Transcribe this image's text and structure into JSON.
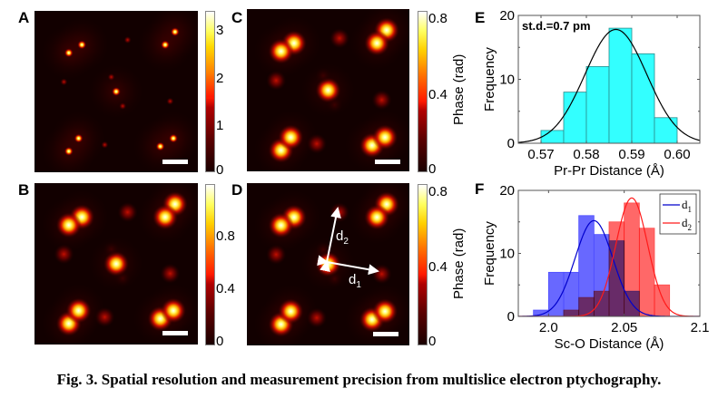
{
  "caption": "Fig. 3. Spatial resolution and measurement precision from multislice electron ptychography.",
  "panels": {
    "A": {
      "letter": "A",
      "colorbar_ticks": [
        "3",
        "2",
        "1",
        "0"
      ],
      "colorbar_range": [
        0,
        3.4
      ]
    },
    "B": {
      "letter": "B",
      "colorbar_ticks": [
        "0.8",
        "0.4",
        "0"
      ],
      "colorbar_range": [
        0,
        1.1
      ]
    },
    "C": {
      "letter": "C",
      "colorbar_ticks": [
        "0.8",
        "0.4",
        "0"
      ],
      "colorbar_title": "Phase (rad)",
      "colorbar_range": [
        0,
        0.84
      ]
    },
    "D": {
      "letter": "D",
      "colorbar_ticks": [
        "0.8",
        "0.4",
        "0"
      ],
      "colorbar_title": "Phase (rad)",
      "colorbar_range": [
        0,
        0.84
      ],
      "arrow_labels": {
        "d1": "d",
        "d1_sub": "1",
        "d2": "d",
        "d2_sub": "2"
      }
    },
    "E": {
      "letter": "E"
    },
    "F": {
      "letter": "F"
    }
  },
  "chart_data": [
    {
      "id": "E",
      "type": "bar",
      "title": "",
      "annotation": "st.d.=0.7 pm",
      "xlabel": "Pr-Pr Distance (Å)",
      "ylabel": "Frequency",
      "xlim": [
        0.565,
        0.605
      ],
      "ylim": [
        0,
        20
      ],
      "xticks": [
        0.57,
        0.58,
        0.59,
        0.6
      ],
      "xtick_labels": [
        "0.57",
        "0.58",
        "0.59",
        "0.60"
      ],
      "yticks": [
        0,
        10,
        20
      ],
      "ytick_labels": [
        "0",
        "10",
        "20"
      ],
      "bin_edges": [
        0.57,
        0.575,
        0.58,
        0.585,
        0.59,
        0.595,
        0.6
      ],
      "values": [
        2,
        8,
        12,
        18,
        14,
        4
      ],
      "bar_color": "#33ffff",
      "fit": {
        "type": "gaussian",
        "mean": 0.5865,
        "std": 0.0068,
        "peak": 17.8,
        "color": "#000000"
      }
    },
    {
      "id": "F",
      "type": "bar",
      "title": "",
      "xlabel": "Sc-O Distance (Å)",
      "ylabel": "Frequency",
      "xlim": [
        1.98,
        2.1
      ],
      "ylim": [
        0,
        20
      ],
      "xticks": [
        2.0,
        2.05,
        2.1
      ],
      "xtick_labels": [
        "2.0",
        "2.05",
        "2.1"
      ],
      "yticks": [
        0,
        10,
        20
      ],
      "ytick_labels": [
        "0",
        "10",
        "20"
      ],
      "legend": {
        "position": "top-right",
        "entries": [
          {
            "label": "d",
            "sub": "1",
            "color": "#0000cc"
          },
          {
            "label": "d",
            "sub": "2",
            "color": "#ff1a1a"
          }
        ]
      },
      "series": [
        {
          "name": "d1",
          "bin_edges": [
            1.99,
            2.0,
            2.01,
            2.02,
            2.03,
            2.04,
            2.05,
            2.06
          ],
          "values": [
            1,
            7,
            7,
            16,
            13,
            12,
            4
          ],
          "bar_color": "#4d4dff",
          "fit": {
            "mean": 2.03,
            "std": 0.0125,
            "peak": 15.2,
            "color": "#0000cc"
          }
        },
        {
          "name": "d2",
          "bin_edges": [
            2.01,
            2.02,
            2.03,
            2.04,
            2.05,
            2.06,
            2.07,
            2.08
          ],
          "values": [
            1,
            3,
            4,
            15,
            18,
            14,
            5
          ],
          "bar_color": "#ff4d4d",
          "fit": {
            "mean": 2.055,
            "std": 0.0105,
            "peak": 18.8,
            "color": "#ff1a1a"
          }
        }
      ]
    }
  ]
}
